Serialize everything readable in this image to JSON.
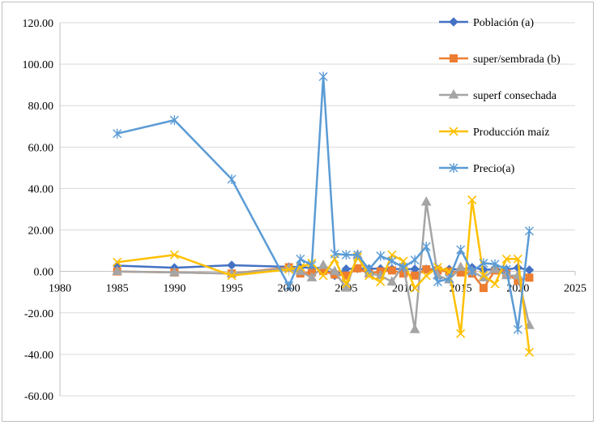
{
  "chart_data": {
    "type": "line",
    "title": "",
    "xlabel": "",
    "ylabel": "",
    "xlim": [
      1980,
      2025
    ],
    "ylim": [
      -60,
      120
    ],
    "x_ticks": [
      1980,
      1985,
      1990,
      1995,
      2000,
      2005,
      2010,
      2015,
      2020,
      2025
    ],
    "y_ticks": [
      -60,
      -40,
      -20,
      0,
      20,
      40,
      60,
      80,
      100,
      120
    ],
    "y_tick_labels": [
      "-60.00",
      "-40.00",
      "-20.00",
      "0.00",
      "20.00",
      "40.00",
      "60.00",
      "80.00",
      "100.00",
      "120.00"
    ],
    "x_tick_labels": [
      "1980",
      "1985",
      "1990",
      "1995",
      "2000",
      "2005",
      "2010",
      "2015",
      "2020",
      "2025"
    ],
    "grid": "horizontal",
    "legend_position": "right",
    "series": [
      {
        "name": "Población (a)",
        "color": "#4472C4",
        "marker": "diamond",
        "points": [
          [
            1985,
            2.8
          ],
          [
            1990,
            1.8
          ],
          [
            1995,
            3.0
          ],
          [
            2000,
            2.2
          ],
          [
            2001,
            2.0
          ],
          [
            2002,
            1.8
          ],
          [
            2003,
            1.6
          ],
          [
            2004,
            -2.0
          ],
          [
            2005,
            1.2
          ],
          [
            2006,
            1.4
          ],
          [
            2007,
            1.3
          ],
          [
            2008,
            1.3
          ],
          [
            2009,
            1.2
          ],
          [
            2010,
            1.2
          ],
          [
            2011,
            1.1
          ],
          [
            2012,
            1.1
          ],
          [
            2013,
            1.0
          ],
          [
            2014,
            1.0
          ],
          [
            2015,
            1.0
          ],
          [
            2016,
            1.9
          ],
          [
            2017,
            0.9
          ],
          [
            2018,
            0.9
          ],
          [
            2019,
            0.9
          ],
          [
            2020,
            1.8
          ],
          [
            2021,
            0.7
          ]
        ]
      },
      {
        "name": "super/sembrada (b)",
        "color": "#ED7D31",
        "marker": "square",
        "points": [
          [
            1985,
            0.0
          ],
          [
            1990,
            -0.5
          ],
          [
            1995,
            -1.0
          ],
          [
            2000,
            2.0
          ],
          [
            2001,
            -1.0
          ],
          [
            2002,
            -0.5
          ],
          [
            2003,
            0.2
          ],
          [
            2004,
            -1.5
          ],
          [
            2005,
            -2.0
          ],
          [
            2006,
            1.5
          ],
          [
            2007,
            -1.0
          ],
          [
            2008,
            0.0
          ],
          [
            2009,
            0.5
          ],
          [
            2010,
            -1.0
          ],
          [
            2011,
            -2.0
          ],
          [
            2012,
            1.0
          ],
          [
            2013,
            0.5
          ],
          [
            2014,
            0.0
          ],
          [
            2015,
            -0.5
          ],
          [
            2016,
            -1.0
          ],
          [
            2017,
            -8.0
          ],
          [
            2018,
            0.5
          ],
          [
            2019,
            -1.0
          ],
          [
            2020,
            -4.5
          ],
          [
            2021,
            -3.0
          ]
        ]
      },
      {
        "name": "superf consechada",
        "color": "#A5A5A5",
        "marker": "triangle",
        "points": [
          [
            1985,
            0.0
          ],
          [
            1990,
            -0.5
          ],
          [
            1995,
            -1.0
          ],
          [
            2000,
            1.5
          ],
          [
            2001,
            0.0
          ],
          [
            2002,
            -3.0
          ],
          [
            2003,
            3.0
          ],
          [
            2004,
            0.0
          ],
          [
            2005,
            -8.0
          ],
          [
            2006,
            8.0
          ],
          [
            2007,
            -1.0
          ],
          [
            2008,
            -2.0
          ],
          [
            2009,
            -5.0
          ],
          [
            2010,
            3.0
          ],
          [
            2011,
            -28.0
          ],
          [
            2012,
            33.5
          ],
          [
            2013,
            -2.0
          ],
          [
            2014,
            -4.0
          ],
          [
            2015,
            2.0
          ],
          [
            2016,
            0.0
          ],
          [
            2017,
            -3.0
          ],
          [
            2018,
            1.0
          ],
          [
            2019,
            -2.0
          ],
          [
            2020,
            -2.0
          ],
          [
            2021,
            -26.0
          ]
        ]
      },
      {
        "name": "Producción maíz",
        "color": "#FFC000",
        "marker": "x",
        "points": [
          [
            1985,
            4.5
          ],
          [
            1990,
            8.0
          ],
          [
            1995,
            -2.0
          ],
          [
            2000,
            1.0
          ],
          [
            2001,
            2.0
          ],
          [
            2002,
            4.0
          ],
          [
            2003,
            -2.0
          ],
          [
            2004,
            6.0
          ],
          [
            2005,
            -6.0
          ],
          [
            2006,
            7.0
          ],
          [
            2007,
            -2.0
          ],
          [
            2008,
            -5.0
          ],
          [
            2009,
            8.0
          ],
          [
            2010,
            5.0
          ],
          [
            2011,
            -8.0
          ],
          [
            2012,
            -2.0
          ],
          [
            2013,
            2.0
          ],
          [
            2014,
            0.0
          ],
          [
            2015,
            -30.0
          ],
          [
            2016,
            34.5
          ],
          [
            2017,
            -2.0
          ],
          [
            2018,
            -6.0
          ],
          [
            2019,
            6.0
          ],
          [
            2020,
            6.0
          ],
          [
            2021,
            -39.0
          ]
        ]
      },
      {
        "name": "Precio(a)",
        "color": "#5B9BD5",
        "marker": "star",
        "points": [
          [
            1985,
            66.5
          ],
          [
            1990,
            73.0
          ],
          [
            1995,
            44.5
          ],
          [
            2000,
            -7.0
          ],
          [
            2001,
            6.0
          ],
          [
            2002,
            3.0
          ],
          [
            2003,
            94.0
          ],
          [
            2004,
            8.5
          ],
          [
            2005,
            8.0
          ],
          [
            2006,
            8.0
          ],
          [
            2007,
            1.0
          ],
          [
            2008,
            7.5
          ],
          [
            2009,
            5.0
          ],
          [
            2010,
            2.0
          ],
          [
            2011,
            5.5
          ],
          [
            2012,
            12.0
          ],
          [
            2013,
            -5.0
          ],
          [
            2014,
            -3.5
          ],
          [
            2015,
            10.5
          ],
          [
            2016,
            0.0
          ],
          [
            2017,
            4.0
          ],
          [
            2018,
            3.5
          ],
          [
            2019,
            1.0
          ],
          [
            2020,
            -28.0
          ],
          [
            2021,
            19.5
          ]
        ]
      }
    ]
  }
}
